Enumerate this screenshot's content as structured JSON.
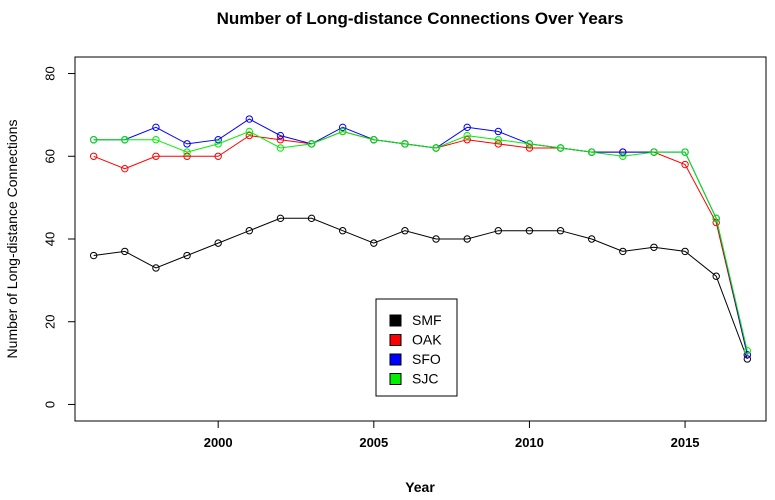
{
  "chart_data": {
    "type": "line",
    "title": "Number of Long-distance Connections Over Years",
    "xlabel": "Year",
    "ylabel": "Number of Long-distance Connections",
    "xlim": [
      1995.4,
      2017.6
    ],
    "ylim": [
      -4,
      84
    ],
    "xticks": [
      2000,
      2005,
      2010,
      2015
    ],
    "yticks": [
      0,
      20,
      40,
      60,
      80
    ],
    "x": [
      1996,
      1997,
      1998,
      1999,
      2000,
      2001,
      2002,
      2003,
      2004,
      2005,
      2006,
      2007,
      2008,
      2009,
      2010,
      2011,
      2012,
      2013,
      2014,
      2015,
      2016,
      2017
    ],
    "series": [
      {
        "name": "SMF",
        "color": "#000000",
        "values": [
          36,
          37,
          33,
          36,
          39,
          42,
          45,
          45,
          42,
          39,
          42,
          40,
          40,
          42,
          42,
          42,
          40,
          37,
          38,
          37,
          31,
          11
        ]
      },
      {
        "name": "OAK",
        "color": "#ff0000",
        "values": [
          60,
          57,
          60,
          60,
          60,
          65,
          64,
          63,
          66,
          64,
          63,
          62,
          64,
          63,
          62,
          62,
          61,
          61,
          61,
          58,
          44,
          12
        ]
      },
      {
        "name": "SFO",
        "color": "#0000ff",
        "values": [
          64,
          64,
          67,
          63,
          64,
          69,
          65,
          63,
          67,
          64,
          63,
          62,
          67,
          66,
          63,
          62,
          61,
          61,
          61,
          61,
          45,
          12
        ]
      },
      {
        "name": "SJC",
        "color": "#00ee00",
        "values": [
          64,
          64,
          64,
          61,
          63,
          66,
          62,
          63,
          66,
          64,
          63,
          62,
          65,
          64,
          63,
          62,
          61,
          60,
          61,
          61,
          45,
          13
        ]
      }
    ],
    "legend": {
      "position": "bottom-center"
    },
    "grid": false
  }
}
